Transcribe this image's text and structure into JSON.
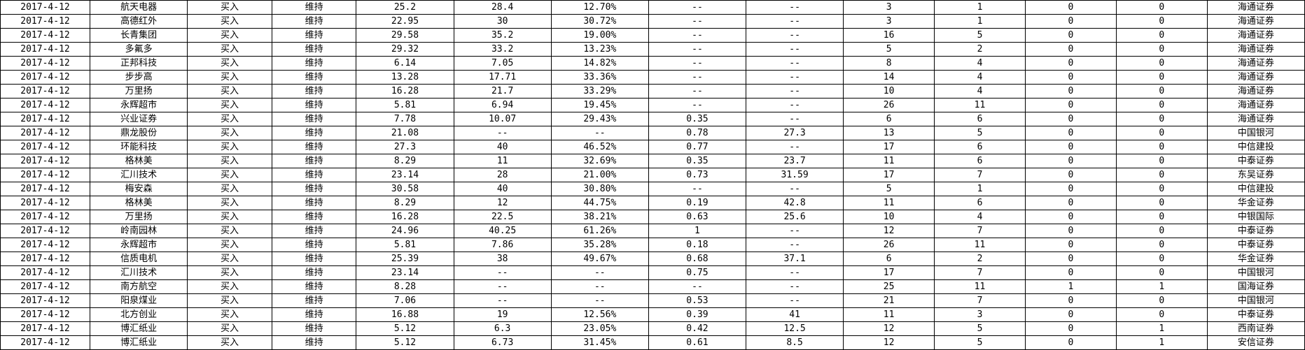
{
  "table": {
    "column_widths_pct": [
      6.9,
      7.5,
      6.5,
      6.5,
      7.5,
      7.5,
      7.5,
      7.5,
      7.5,
      7.0,
      7.0,
      7.0,
      7.0,
      7.5
    ],
    "rows": [
      [
        "2017-4-12",
        "航天电器",
        "买入",
        "维持",
        "25.2",
        "28.4",
        "12.70%",
        "--",
        "--",
        "3",
        "1",
        "0",
        "0",
        "海通证券"
      ],
      [
        "2017-4-12",
        "高德红外",
        "买入",
        "维持",
        "22.95",
        "30",
        "30.72%",
        "--",
        "--",
        "3",
        "1",
        "0",
        "0",
        "海通证券"
      ],
      [
        "2017-4-12",
        "长青集团",
        "买入",
        "维持",
        "29.58",
        "35.2",
        "19.00%",
        "--",
        "--",
        "16",
        "5",
        "0",
        "0",
        "海通证券"
      ],
      [
        "2017-4-12",
        "多氟多",
        "买入",
        "维持",
        "29.32",
        "33.2",
        "13.23%",
        "--",
        "--",
        "5",
        "2",
        "0",
        "0",
        "海通证券"
      ],
      [
        "2017-4-12",
        "正邦科技",
        "买入",
        "维持",
        "6.14",
        "7.05",
        "14.82%",
        "--",
        "--",
        "8",
        "4",
        "0",
        "0",
        "海通证券"
      ],
      [
        "2017-4-12",
        "步步高",
        "买入",
        "维持",
        "13.28",
        "17.71",
        "33.36%",
        "--",
        "--",
        "14",
        "4",
        "0",
        "0",
        "海通证券"
      ],
      [
        "2017-4-12",
        "万里扬",
        "买入",
        "维持",
        "16.28",
        "21.7",
        "33.29%",
        "--",
        "--",
        "10",
        "4",
        "0",
        "0",
        "海通证券"
      ],
      [
        "2017-4-12",
        "永辉超市",
        "买入",
        "维持",
        "5.81",
        "6.94",
        "19.45%",
        "--",
        "--",
        "26",
        "11",
        "0",
        "0",
        "海通证券"
      ],
      [
        "2017-4-12",
        "兴业证券",
        "买入",
        "维持",
        "7.78",
        "10.07",
        "29.43%",
        "0.35",
        "--",
        "6",
        "6",
        "0",
        "0",
        "海通证券"
      ],
      [
        "2017-4-12",
        "鼎龙股份",
        "买入",
        "维持",
        "21.08",
        "--",
        "--",
        "0.78",
        "27.3",
        "13",
        "5",
        "0",
        "0",
        "中国银河"
      ],
      [
        "2017-4-12",
        "环能科技",
        "买入",
        "维持",
        "27.3",
        "40",
        "46.52%",
        "0.77",
        "--",
        "17",
        "6",
        "0",
        "0",
        "中信建投"
      ],
      [
        "2017-4-12",
        "格林美",
        "买入",
        "维持",
        "8.29",
        "11",
        "32.69%",
        "0.35",
        "23.7",
        "11",
        "6",
        "0",
        "0",
        "中泰证券"
      ],
      [
        "2017-4-12",
        "汇川技术",
        "买入",
        "维持",
        "23.14",
        "28",
        "21.00%",
        "0.73",
        "31.59",
        "17",
        "7",
        "0",
        "0",
        "东吴证券"
      ],
      [
        "2017-4-12",
        "梅安森",
        "买入",
        "维持",
        "30.58",
        "40",
        "30.80%",
        "--",
        "--",
        "5",
        "1",
        "0",
        "0",
        "中信建投"
      ],
      [
        "2017-4-12",
        "格林美",
        "买入",
        "维持",
        "8.29",
        "12",
        "44.75%",
        "0.19",
        "42.8",
        "11",
        "6",
        "0",
        "0",
        "华金证券"
      ],
      [
        "2017-4-12",
        "万里扬",
        "买入",
        "维持",
        "16.28",
        "22.5",
        "38.21%",
        "0.63",
        "25.6",
        "10",
        "4",
        "0",
        "0",
        "中银国际"
      ],
      [
        "2017-4-12",
        "岭南园林",
        "买入",
        "维持",
        "24.96",
        "40.25",
        "61.26%",
        "1",
        "--",
        "12",
        "7",
        "0",
        "0",
        "中泰证券"
      ],
      [
        "2017-4-12",
        "永辉超市",
        "买入",
        "维持",
        "5.81",
        "7.86",
        "35.28%",
        "0.18",
        "--",
        "26",
        "11",
        "0",
        "0",
        "中泰证券"
      ],
      [
        "2017-4-12",
        "信质电机",
        "买入",
        "维持",
        "25.39",
        "38",
        "49.67%",
        "0.68",
        "37.1",
        "6",
        "2",
        "0",
        "0",
        "华金证券"
      ],
      [
        "2017-4-12",
        "汇川技术",
        "买入",
        "维持",
        "23.14",
        "--",
        "--",
        "0.75",
        "--",
        "17",
        "7",
        "0",
        "0",
        "中国银河"
      ],
      [
        "2017-4-12",
        "南方航空",
        "买入",
        "维持",
        "8.28",
        "--",
        "--",
        "--",
        "--",
        "25",
        "11",
        "1",
        "1",
        "国海证券"
      ],
      [
        "2017-4-12",
        "阳泉煤业",
        "买入",
        "维持",
        "7.06",
        "--",
        "--",
        "0.53",
        "--",
        "21",
        "7",
        "0",
        "0",
        "中国银河"
      ],
      [
        "2017-4-12",
        "北方创业",
        "买入",
        "维持",
        "16.88",
        "19",
        "12.56%",
        "0.39",
        "41",
        "11",
        "3",
        "0",
        "0",
        "中泰证券"
      ],
      [
        "2017-4-12",
        "博汇纸业",
        "买入",
        "维持",
        "5.12",
        "6.3",
        "23.05%",
        "0.42",
        "12.5",
        "12",
        "5",
        "0",
        "1",
        "西南证券"
      ],
      [
        "2017-4-12",
        "博汇纸业",
        "买入",
        "维持",
        "5.12",
        "6.73",
        "31.45%",
        "0.61",
        "8.5",
        "12",
        "5",
        "0",
        "1",
        "安信证券"
      ]
    ]
  }
}
